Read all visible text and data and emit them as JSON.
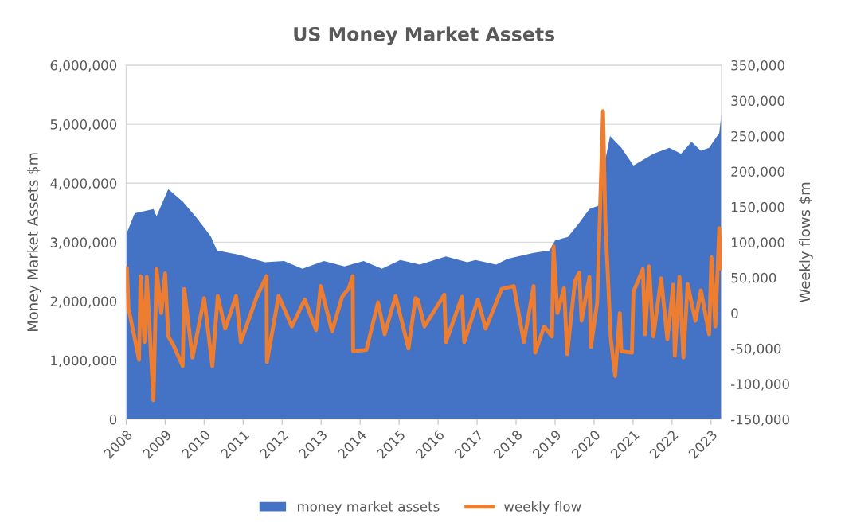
{
  "chart_data": {
    "type": "area",
    "title": "US Money Market Assets",
    "ylabel": "Money Market Assets $m",
    "y2label": "Weekly flows $m",
    "xlim": [
      2008,
      2023.27
    ],
    "xticks": [
      2008,
      2009,
      2010,
      2011,
      2012,
      2013,
      2014,
      2015,
      2016,
      2017,
      2018,
      2019,
      2020,
      2021,
      2022,
      2023
    ],
    "ylim": [
      0,
      6000000
    ],
    "yticks": [
      0,
      {
        "value": 1000000,
        "label": "1,000,000"
      },
      {
        "value": 2000000,
        "label": "2,000,000"
      },
      {
        "value": 3000000,
        "label": "3,000,000"
      },
      {
        "value": 4000000,
        "label": "4,000,000"
      },
      {
        "value": 5000000,
        "label": "5,000,000"
      },
      {
        "value": 6000000,
        "label": "6,000,000"
      }
    ],
    "y2lim": [
      -150000,
      350000
    ],
    "y2ticks": [
      {
        "value": -150000,
        "label": "-150,000"
      },
      {
        "value": -100000,
        "label": "-100,000"
      },
      {
        "value": -50000,
        "label": "-50,000"
      },
      0,
      {
        "value": 50000,
        "label": "50,000"
      },
      {
        "value": 100000,
        "label": "100,000"
      },
      {
        "value": 150000,
        "label": "150,000"
      },
      {
        "value": 200000,
        "label": "200,000"
      },
      {
        "value": 250000,
        "label": "250,000"
      },
      {
        "value": 300000,
        "label": "300,000"
      },
      {
        "value": 350000,
        "label": "350,000"
      }
    ],
    "grid": "y",
    "legend": "bottom",
    "series": [
      {
        "name": "money market assets",
        "color": "#4472c4",
        "x": [
          2008.0,
          2008.22,
          2008.7,
          2008.78,
          2009.08,
          2009.45,
          2009.8,
          2010.17,
          2010.33,
          2010.88,
          2011.56,
          2012.05,
          2012.52,
          2013.07,
          2013.6,
          2014.09,
          2014.56,
          2015.03,
          2015.53,
          2016.2,
          2016.75,
          2016.96,
          2017.49,
          2017.78,
          2018.45,
          2018.86,
          2019.0,
          2019.33,
          2019.62,
          2019.88,
          2020.15,
          2020.29,
          2020.41,
          2020.7,
          2021.01,
          2021.52,
          2021.93,
          2022.23,
          2022.5,
          2022.74,
          2022.95,
          2023.21,
          2023.27
        ],
        "values": [
          3130000,
          3490000,
          3560000,
          3440000,
          3900000,
          3690000,
          3420000,
          3100000,
          2860000,
          2790000,
          2660000,
          2680000,
          2550000,
          2680000,
          2590000,
          2680000,
          2550000,
          2700000,
          2620000,
          2760000,
          2660000,
          2700000,
          2620000,
          2720000,
          2820000,
          2860000,
          3030000,
          3090000,
          3330000,
          3560000,
          3630000,
          4400000,
          4800000,
          4600000,
          4300000,
          4500000,
          4600000,
          4500000,
          4700000,
          4550000,
          4600000,
          4850000,
          5200000
        ]
      },
      {
        "name": "weekly flow",
        "type": "line",
        "axis": "y2",
        "color": "#ed7d31",
        "x": [
          2008.02,
          2008.06,
          2008.33,
          2008.37,
          2008.47,
          2008.53,
          2008.7,
          2008.78,
          2008.9,
          2009.0,
          2009.08,
          2009.21,
          2009.45,
          2009.49,
          2009.7,
          2010.0,
          2010.21,
          2010.35,
          2010.54,
          2010.82,
          2010.94,
          2011.35,
          2011.6,
          2011.61,
          2011.91,
          2012.25,
          2012.58,
          2012.87,
          2012.99,
          2013.28,
          2013.54,
          2013.71,
          2013.81,
          2013.82,
          2014.16,
          2014.46,
          2014.63,
          2014.91,
          2015.24,
          2015.42,
          2015.48,
          2015.65,
          2016.16,
          2016.2,
          2016.61,
          2016.67,
          2017.02,
          2017.22,
          2017.63,
          2017.94,
          2018.2,
          2018.45,
          2018.49,
          2018.72,
          2018.92,
          2018.96,
          2019.06,
          2019.23,
          2019.31,
          2019.51,
          2019.62,
          2019.68,
          2019.88,
          2019.92,
          2020.08,
          2020.23,
          2020.29,
          2020.43,
          2020.54,
          2020.66,
          2020.7,
          2020.97,
          2021.01,
          2021.25,
          2021.31,
          2021.41,
          2021.52,
          2021.72,
          2021.88,
          2022.03,
          2022.07,
          2022.19,
          2022.29,
          2022.4,
          2022.6,
          2022.74,
          2022.95,
          2023.01,
          2023.11,
          2023.21,
          2023.25
        ],
        "values": [
          63000,
          7000,
          -66000,
          52000,
          -41000,
          51000,
          -123000,
          62000,
          0,
          56000,
          -33000,
          -45000,
          -75000,
          34000,
          -63000,
          21000,
          -75000,
          24000,
          -22000,
          24000,
          -41000,
          23000,
          52000,
          -69000,
          24000,
          -19000,
          19000,
          -24000,
          38000,
          -26000,
          23000,
          35000,
          52000,
          -54000,
          -52000,
          15000,
          -30000,
          24000,
          -50000,
          21000,
          19000,
          -19000,
          26000,
          -41000,
          23000,
          -41000,
          19000,
          -22000,
          34000,
          38000,
          -41000,
          38000,
          -56000,
          -19000,
          -33000,
          94000,
          0,
          35000,
          -58000,
          45000,
          57000,
          -11000,
          51000,
          -48000,
          15000,
          285000,
          128000,
          -37000,
          -89000,
          0,
          -54000,
          -56000,
          30000,
          62000,
          -30000,
          66000,
          -33000,
          49000,
          -37000,
          40000,
          -60000,
          51000,
          -63000,
          41000,
          -11000,
          32000,
          -30000,
          79000,
          -19000,
          120000,
          63000
        ]
      }
    ]
  }
}
